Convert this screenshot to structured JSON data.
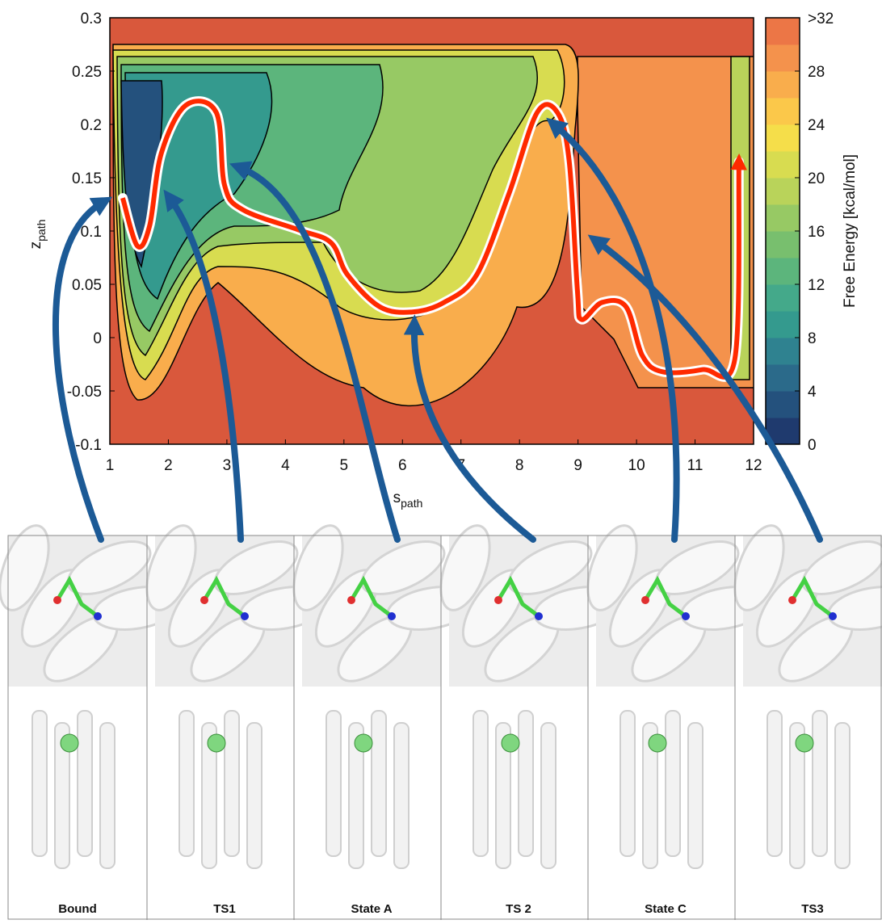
{
  "chart_data": {
    "type": "contour",
    "xlabel": {
      "text": "s",
      "sub": "path"
    },
    "ylabel": {
      "text": "z",
      "sub": "path"
    },
    "xlim": [
      1,
      12
    ],
    "xticks": [
      1,
      2,
      3,
      4,
      5,
      6,
      7,
      8,
      9,
      10,
      11,
      12
    ],
    "ylim": [
      -0.1,
      0.3
    ],
    "yticks": [
      -0.1,
      -0.05,
      0,
      0.05,
      0.1,
      0.15,
      0.2,
      0.25,
      0.3
    ],
    "series": [
      {
        "color": "#ff2a00",
        "x": [
          1.22,
          1.47,
          1.68,
          1.88,
          2.3,
          2.82,
          2.96,
          3.27,
          4.23,
          4.78,
          5.06,
          5.61,
          6.16,
          6.71,
          7.27,
          7.82,
          8.3,
          8.65,
          8.85,
          8.99,
          9.06,
          9.41,
          9.82,
          10.1,
          10.44,
          11.13,
          11.68,
          11.75
        ],
        "values": [
          0.131,
          0.086,
          0.105,
          0.173,
          0.218,
          0.211,
          0.143,
          0.12,
          0.101,
          0.089,
          0.059,
          0.029,
          0.024,
          0.033,
          0.059,
          0.135,
          0.211,
          0.211,
          0.165,
          0.044,
          0.017,
          0.033,
          0.029,
          -0.017,
          -0.032,
          -0.03,
          -0.02,
          0.165
        ]
      }
    ],
    "colorbar": {
      "label": "Free Energy [kcal/mol]",
      "lim": [
        0,
        32
      ],
      "ticks": [
        0,
        4,
        8,
        12,
        16,
        20,
        24,
        28,
        {
          "value": 32,
          "label": ">32"
        }
      ],
      "colors": [
        "#1f3a6e",
        "#24517d",
        "#2b6a8a",
        "#2f8290",
        "#349a8e",
        "#44a98a",
        "#5cb57c",
        "#78bf6e",
        "#97c964",
        "#b9d35a",
        "#d8dc50",
        "#f5de4a",
        "#fbc84a",
        "#f9ad4c",
        "#f4924c",
        "#ec7646"
      ]
    }
  },
  "panels": [
    {
      "label": "Bound"
    },
    {
      "label": "TS1"
    },
    {
      "label": "State A"
    },
    {
      "label": "TS 2"
    },
    {
      "label": "State C"
    },
    {
      "label": "TS3"
    }
  ]
}
